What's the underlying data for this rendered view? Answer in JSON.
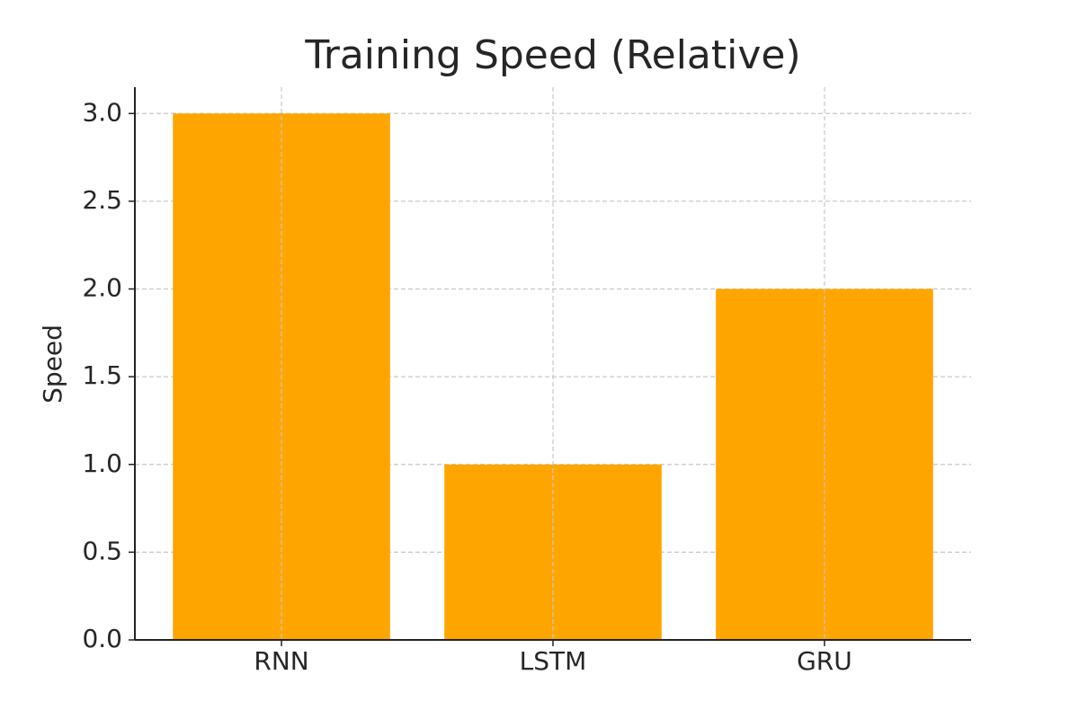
{
  "chart_data": {
    "type": "bar",
    "title": "Training Speed (Relative)",
    "ylabel": "Speed",
    "categories": [
      "RNN",
      "LSTM",
      "GRU"
    ],
    "values": [
      3,
      1,
      2
    ],
    "color": "#ffa500",
    "ylim": [
      0,
      3.15
    ],
    "yticks": [
      {
        "value": 0,
        "label": "0.0"
      },
      {
        "value": 0.5,
        "label": "0.5"
      },
      {
        "value": 1,
        "label": "1.0"
      },
      {
        "value": 1.5,
        "label": "1.5"
      },
      {
        "value": 2,
        "label": "2.0"
      },
      {
        "value": 2.5,
        "label": "2.5"
      },
      {
        "value": 3,
        "label": "3.0"
      }
    ],
    "grid": true
  }
}
